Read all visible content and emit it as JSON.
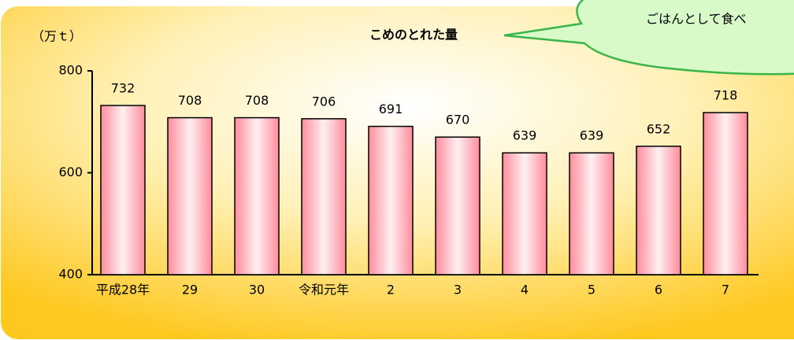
{
  "chart_data": {
    "type": "bar",
    "title": "こめのとれた量",
    "ylabel": "（万ｔ）",
    "annotations": [
      "ごはんとして食べ"
    ],
    "categories": [
      "平成28年",
      "29",
      "30",
      "令和元年",
      "2",
      "3",
      "4",
      "5",
      "6",
      "7"
    ],
    "values": [
      732,
      708,
      708,
      706,
      691,
      670,
      639,
      639,
      652,
      718
    ],
    "color": "#ff9aa8",
    "ylim": [
      400,
      800
    ],
    "yticks": [
      400,
      600,
      800
    ],
    "grid": false
  }
}
